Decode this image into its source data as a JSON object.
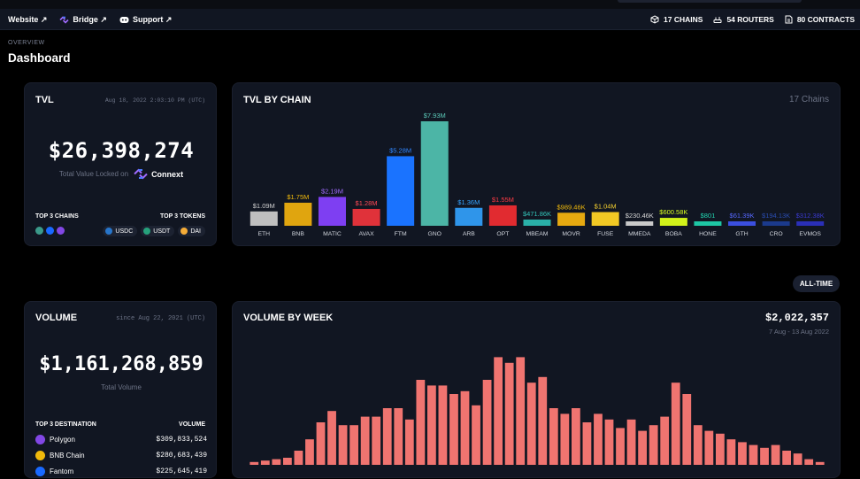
{
  "nav": {
    "links": [
      {
        "label": "Website ↗",
        "icon": "none"
      },
      {
        "label": "Bridge ↗",
        "icon": "connext-logo-icon"
      },
      {
        "label": "Support ↗",
        "icon": "discord-icon"
      }
    ],
    "stats": [
      {
        "label": "17 CHAINS",
        "icon": "cube-icon"
      },
      {
        "label": "54 ROUTERS",
        "icon": "router-icon"
      },
      {
        "label": "80 CONTRACTS",
        "icon": "document-icon"
      }
    ]
  },
  "page": {
    "overview": "OVERVIEW",
    "title": "Dashboard"
  },
  "tvl": {
    "title": "TVL",
    "timestamp": "Aug 18, 2022 2:03:10 PM (UTC)",
    "value": "$26,398,274",
    "subtitle": "Total Value Locked on",
    "brand": "Connext",
    "top_chains_label": "TOP 3 CHAINS",
    "top_tokens_label": "TOP 3 TOKENS",
    "top_chains": [
      {
        "name": "gnosis",
        "color": "#3b9a8a"
      },
      {
        "name": "fantom",
        "color": "#1969ff"
      },
      {
        "name": "polygon",
        "color": "#8247e5"
      }
    ],
    "top_tokens": [
      {
        "symbol": "USDC",
        "color": "#2775ca"
      },
      {
        "symbol": "USDT",
        "color": "#26a17b"
      },
      {
        "symbol": "DAI",
        "color": "#f5ac37"
      }
    ]
  },
  "tvl_by_chain": {
    "title": "TVL BY CHAIN",
    "count_label": "17 Chains"
  },
  "alltime_button": "ALL-TIME",
  "volume": {
    "title": "VOLUME",
    "since": "since Aug 22, 2021 (UTC)",
    "value": "$1,161,268,859",
    "subtitle": "Total Volume",
    "dest_header": "TOP 3 DESTINATION",
    "vol_header": "VOLUME",
    "destinations": [
      {
        "name": "Polygon",
        "value": "$309,833,524",
        "color": "#8247e5"
      },
      {
        "name": "BNB Chain",
        "value": "$280,683,439",
        "color": "#f0b90b"
      },
      {
        "name": "Fantom",
        "value": "$225,645,419",
        "color": "#1969ff"
      }
    ]
  },
  "volume_by_week": {
    "title": "VOLUME BY WEEK",
    "value": "$2,022,357",
    "range": "7 Aug - 13 Aug 2022"
  },
  "chart_data": [
    {
      "type": "bar",
      "title": "TVL BY CHAIN",
      "categories": [
        "ETH",
        "BNB",
        "MATIC",
        "AVAX",
        "FTM",
        "GNO",
        "ARB",
        "OPT",
        "MBEAM",
        "MOVR",
        "FUSE",
        "MMEDA",
        "BOBA",
        "HONE",
        "GTH",
        "CRO",
        "EVMOS"
      ],
      "labels": [
        "$1.09M",
        "$1.75M",
        "$2.19M",
        "$1.28M",
        "$5.28M",
        "$7.93M",
        "$1.36M",
        "$1.55M",
        "$471.86K",
        "$989.46K",
        "$1.04M",
        "$230.46K",
        "$600.58K",
        "$801",
        "$61.39K",
        "$194.13K",
        "$312.38K"
      ],
      "values": [
        1.09,
        1.75,
        2.19,
        1.28,
        5.28,
        7.93,
        1.36,
        1.55,
        0.47186,
        0.98946,
        1.04,
        0.23046,
        0.60058,
        0.000801,
        0.06139,
        0.19413,
        0.31238
      ],
      "colors": [
        "#bfbfbf",
        "#e0a50f",
        "#7e3ff2",
        "#e0323a",
        "#1a73ff",
        "#4cb5a6",
        "#2f95ea",
        "#e12b30",
        "#2ab0a8",
        "#e6a910",
        "#f2c924",
        "#c9c9c9",
        "#d2f21a",
        "#1ec7a5",
        "#3b4fe0",
        "#1b3a8c",
        "#2a2fb8"
      ],
      "label_colors": [
        "#cfcfcf",
        "#f0b90b",
        "#a06bff",
        "#ff4a55",
        "#2f86ff",
        "#5ccab9",
        "#35a3ff",
        "#ff3b45",
        "#33c4b9",
        "#f0b90b",
        "#f5d02f",
        "#d6d6d6",
        "#d8ff1f",
        "#22d4b0",
        "#5668ff",
        "#2a4cb0",
        "#3a3ad0"
      ],
      "unit": "$M"
    },
    {
      "type": "bar",
      "title": "VOLUME BY WEEK",
      "values": [
        1,
        1.5,
        2,
        2.5,
        5,
        9,
        15,
        19,
        14,
        14,
        17,
        17,
        20,
        20,
        16,
        30,
        28,
        28,
        25,
        26,
        21,
        30,
        38,
        36,
        38,
        29,
        31,
        20,
        18,
        20,
        15,
        18,
        16,
        13,
        16,
        12,
        14,
        17,
        29,
        25,
        14,
        12,
        11,
        9,
        8,
        7,
        6,
        7,
        5,
        4,
        2,
        1
      ],
      "ylim": [
        0,
        40
      ],
      "color": "#f07470"
    }
  ]
}
